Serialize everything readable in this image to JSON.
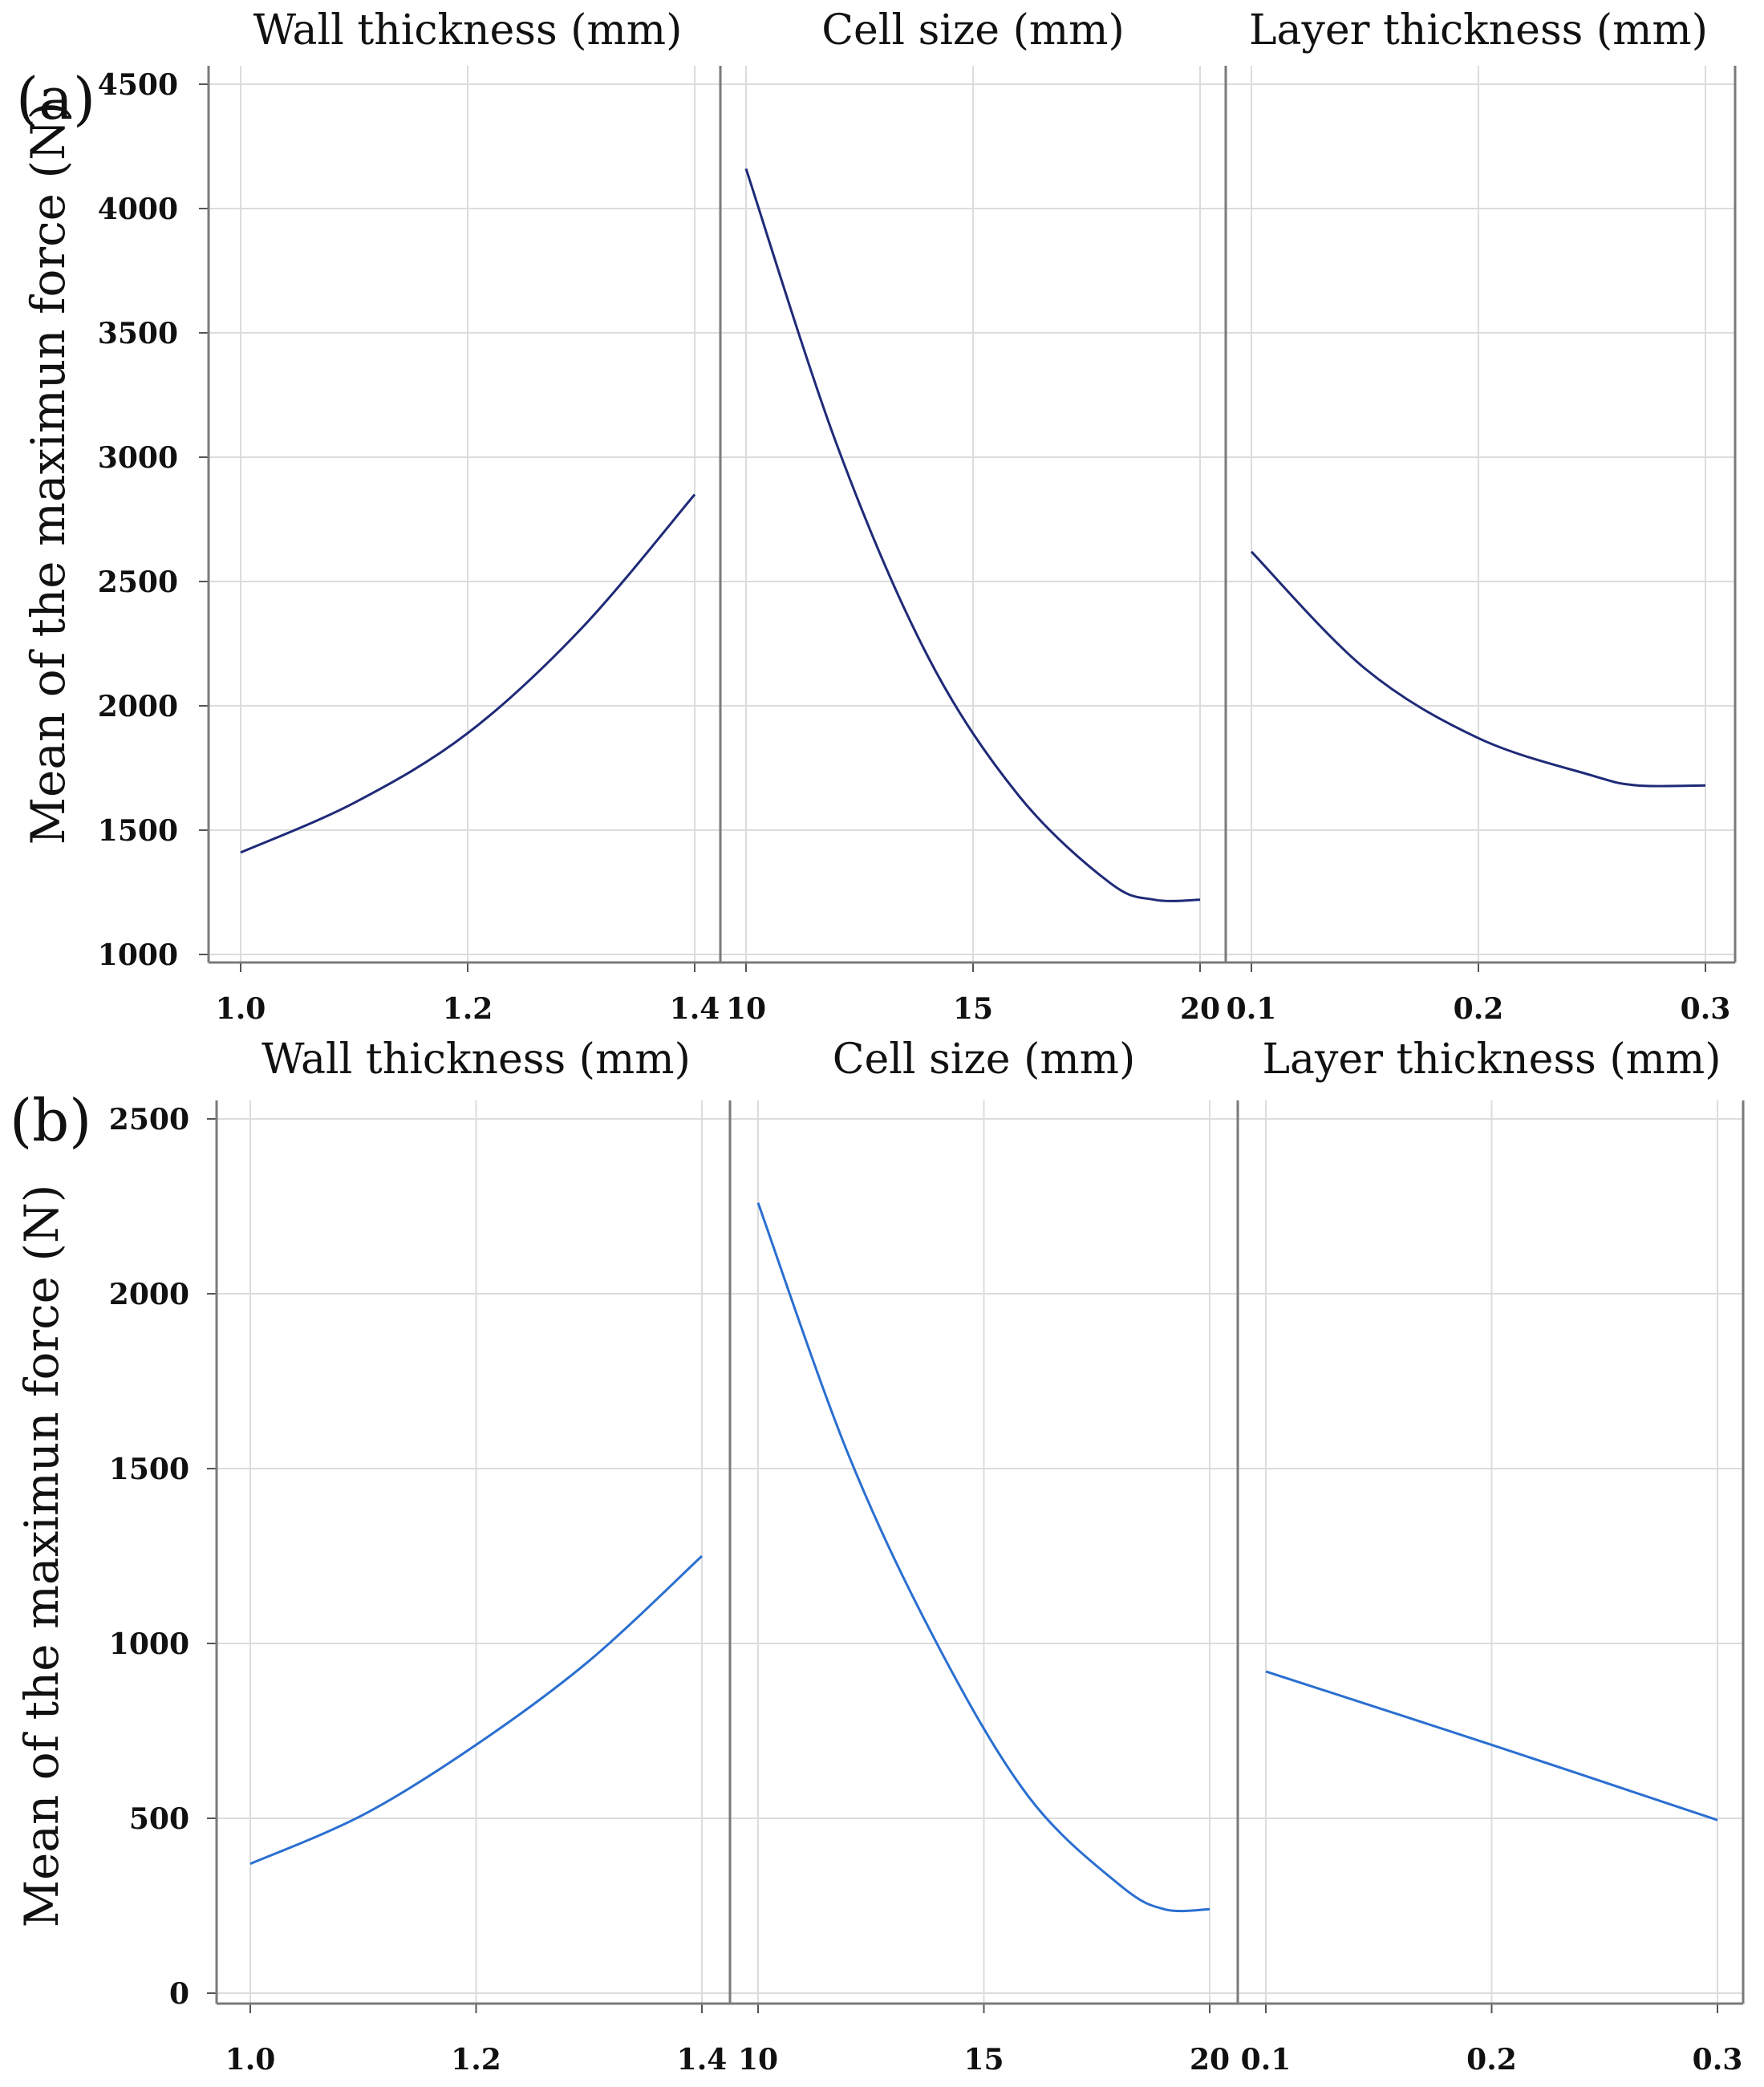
{
  "figure": {
    "colors": {
      "grid": "#dcdcdc",
      "frame": "#7a7a7a",
      "series_a": "#1f2a78",
      "series_b": "#2a6fd0"
    }
  },
  "chart_data": [
    {
      "type": "line",
      "panel_label": "(a)",
      "title": "",
      "ylabel": "Mean of the maximun force (N)",
      "ylim": [
        1000,
        4500
      ],
      "yticks": [
        1000,
        1500,
        2000,
        2500,
        3000,
        3500,
        4000,
        4500
      ],
      "ytick_labels": [
        "1000",
        "1500",
        "2000",
        "2500",
        "3000",
        "3500",
        "4000",
        "4500"
      ],
      "grid": true,
      "panels": [
        {
          "title": "Wall thickness (mm)",
          "xlim": [
            1.0,
            1.4
          ],
          "xticks": [
            1.0,
            1.2,
            1.4
          ],
          "xtick_labels": [
            "1.0",
            "1.2",
            "1.4"
          ],
          "series": [
            {
              "name": "Mean",
              "x": [
                1.0,
                1.1,
                1.2,
                1.3,
                1.4
              ],
              "y": [
                1410,
                1610,
                1890,
                2310,
                2850
              ]
            }
          ]
        },
        {
          "title": "Cell size (mm)",
          "xlim": [
            10,
            20
          ],
          "xticks": [
            10,
            15,
            20
          ],
          "xtick_labels": [
            "10",
            "15",
            "20"
          ],
          "series": [
            {
              "name": "Mean",
              "x": [
                10,
                12,
                14,
                16,
                18,
                19,
                20
              ],
              "y": [
                4160,
                3050,
                2200,
                1640,
                1290,
                1220,
                1220
              ]
            }
          ]
        },
        {
          "title": "Layer thickness (mm)",
          "xlim": [
            0.1,
            0.3
          ],
          "xticks": [
            0.1,
            0.2,
            0.3
          ],
          "xtick_labels": [
            "0.1",
            "0.2",
            "0.3"
          ],
          "series": [
            {
              "name": "Mean",
              "x": [
                0.1,
                0.15,
                0.2,
                0.25,
                0.27,
                0.3
              ],
              "y": [
                2620,
                2150,
                1870,
                1720,
                1680,
                1680
              ]
            }
          ]
        }
      ]
    },
    {
      "type": "line",
      "panel_label": "(b)",
      "title": "",
      "ylabel": "Mean of the maximun force (N)",
      "ylim": [
        0,
        2500
      ],
      "yticks": [
        0,
        500,
        1000,
        1500,
        2000,
        2500
      ],
      "ytick_labels": [
        "0",
        "500",
        "1000",
        "1500",
        "2000",
        "2500"
      ],
      "grid": true,
      "panels": [
        {
          "title": "Wall thickness (mm)",
          "xlim": [
            1.0,
            1.4
          ],
          "xticks": [
            1.0,
            1.2,
            1.4
          ],
          "xtick_labels": [
            "1.0",
            "1.2",
            "1.4"
          ],
          "series": [
            {
              "name": "Mean",
              "x": [
                1.0,
                1.1,
                1.2,
                1.3,
                1.4
              ],
              "y": [
                370,
                510,
                710,
                950,
                1250
              ]
            }
          ]
        },
        {
          "title": "Cell size (mm)",
          "xlim": [
            10,
            20
          ],
          "xticks": [
            10,
            15,
            20
          ],
          "xtick_labels": [
            "10",
            "15",
            "20"
          ],
          "series": [
            {
              "name": "Mean",
              "x": [
                10,
                12,
                14,
                16,
                18,
                19,
                20
              ],
              "y": [
                2260,
                1540,
                990,
                560,
                310,
                240,
                240
              ]
            }
          ]
        },
        {
          "title": "Layer thickness (mm)",
          "xlim": [
            0.1,
            0.3
          ],
          "xticks": [
            0.1,
            0.2,
            0.3
          ],
          "xtick_labels": [
            "0.1",
            "0.2",
            "0.3"
          ],
          "series": [
            {
              "name": "Mean",
              "x": [
                0.1,
                0.2,
                0.3
              ],
              "y": [
                920,
                710,
                495
              ]
            }
          ]
        }
      ]
    }
  ]
}
